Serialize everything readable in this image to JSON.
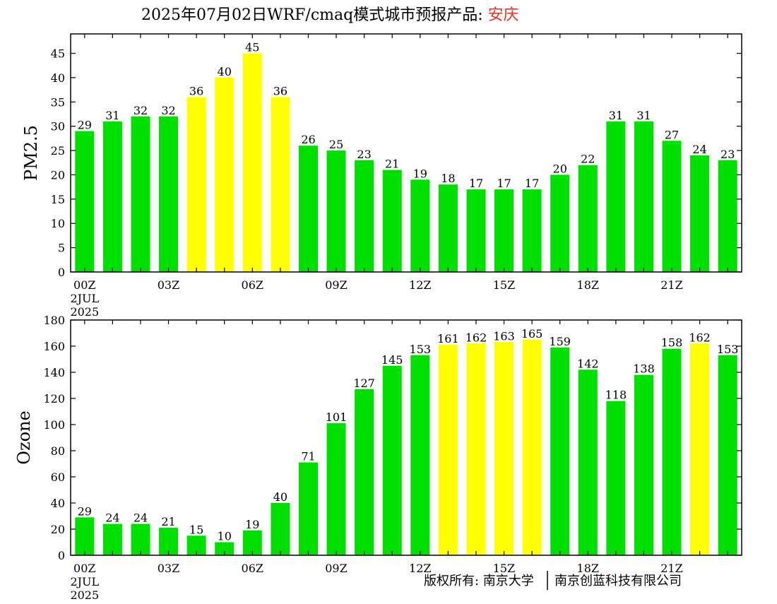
{
  "title": {
    "prefix": "2025年07月02日WRF/cmaq模式城市预报产品: ",
    "city": "安庆"
  },
  "colors": {
    "good": "#00e000",
    "moderate": "#ffff00",
    "city": "#e8342a"
  },
  "copyright": {
    "left": "版权所有: 南京大学",
    "right": "南京创蓝科技有限公司"
  },
  "chart_data": [
    {
      "type": "bar",
      "ylabel": "PM2.5",
      "ylim": [
        0,
        49
      ],
      "yticks": [
        0,
        5,
        10,
        15,
        20,
        25,
        30,
        35,
        40,
        45
      ],
      "categories": [
        "00Z",
        "01Z",
        "02Z",
        "03Z",
        "04Z",
        "05Z",
        "06Z",
        "07Z",
        "08Z",
        "09Z",
        "10Z",
        "11Z",
        "12Z",
        "13Z",
        "14Z",
        "15Z",
        "16Z",
        "17Z",
        "18Z",
        "19Z",
        "20Z",
        "21Z",
        "22Z",
        "23Z"
      ],
      "xticklabels": [
        "00Z",
        "03Z",
        "06Z",
        "09Z",
        "12Z",
        "15Z",
        "18Z",
        "21Z"
      ],
      "xdate": [
        "2JUL",
        "2025"
      ],
      "values": [
        29,
        31,
        32,
        32,
        36,
        40,
        45,
        36,
        26,
        25,
        23,
        21,
        19,
        18,
        17,
        17,
        17,
        20,
        22,
        31,
        31,
        27,
        24,
        23
      ],
      "bar_colors": [
        "good",
        "good",
        "good",
        "good",
        "moderate",
        "moderate",
        "moderate",
        "moderate",
        "good",
        "good",
        "good",
        "good",
        "good",
        "good",
        "good",
        "good",
        "good",
        "good",
        "good",
        "good",
        "good",
        "good",
        "good",
        "good"
      ]
    },
    {
      "type": "bar",
      "ylabel": "Ozone",
      "ylim": [
        0,
        180
      ],
      "yticks": [
        0,
        20,
        40,
        60,
        80,
        100,
        120,
        140,
        160,
        180
      ],
      "categories": [
        "00Z",
        "01Z",
        "02Z",
        "03Z",
        "04Z",
        "05Z",
        "06Z",
        "07Z",
        "08Z",
        "09Z",
        "10Z",
        "11Z",
        "12Z",
        "13Z",
        "14Z",
        "15Z",
        "16Z",
        "17Z",
        "18Z",
        "19Z",
        "20Z",
        "21Z",
        "22Z",
        "23Z"
      ],
      "xticklabels": [
        "00Z",
        "03Z",
        "06Z",
        "09Z",
        "12Z",
        "15Z",
        "18Z",
        "21Z"
      ],
      "xdate": [
        "2JUL",
        "2025"
      ],
      "values": [
        29,
        24,
        24,
        21,
        15,
        10,
        19,
        40,
        71,
        101,
        127,
        145,
        153,
        161,
        162,
        163,
        165,
        159,
        142,
        118,
        138,
        158,
        162,
        153
      ],
      "bar_colors": [
        "good",
        "good",
        "good",
        "good",
        "good",
        "good",
        "good",
        "good",
        "good",
        "good",
        "good",
        "good",
        "good",
        "moderate",
        "moderate",
        "moderate",
        "moderate",
        "good",
        "good",
        "good",
        "good",
        "good",
        "moderate",
        "good"
      ]
    }
  ]
}
